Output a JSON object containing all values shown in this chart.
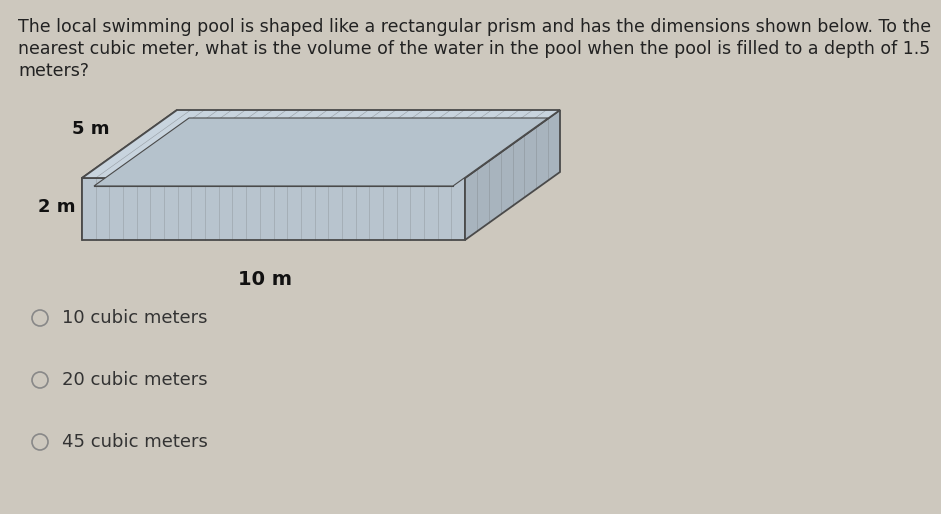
{
  "background_color": "#cdc8be",
  "question_text_line1": "The local swimming pool is shaped like a rectangular prism and has the dimensions shown below. To the",
  "question_text_line2": "nearest cubic meter, what is the volume of the water in the pool when the pool is filled to a depth of 1.5",
  "question_text_line3": "meters?",
  "question_fontsize": 12.5,
  "dim_5m": "5 m",
  "dim_2m": "2 m",
  "dim_10m": "10 m",
  "dim_fontsize": 13,
  "choices": [
    "10 cubic meters",
    "20 cubic meters",
    "45 cubic meters"
  ],
  "choice_fontsize": 13,
  "box_front_color": "#b8c4ce",
  "box_right_color": "#a8b4be",
  "box_top_color": "#c8d4de",
  "box_inner_color": "#b5c2cc",
  "box_edge_color": "#4a4a4a",
  "circle_color": "#888888"
}
